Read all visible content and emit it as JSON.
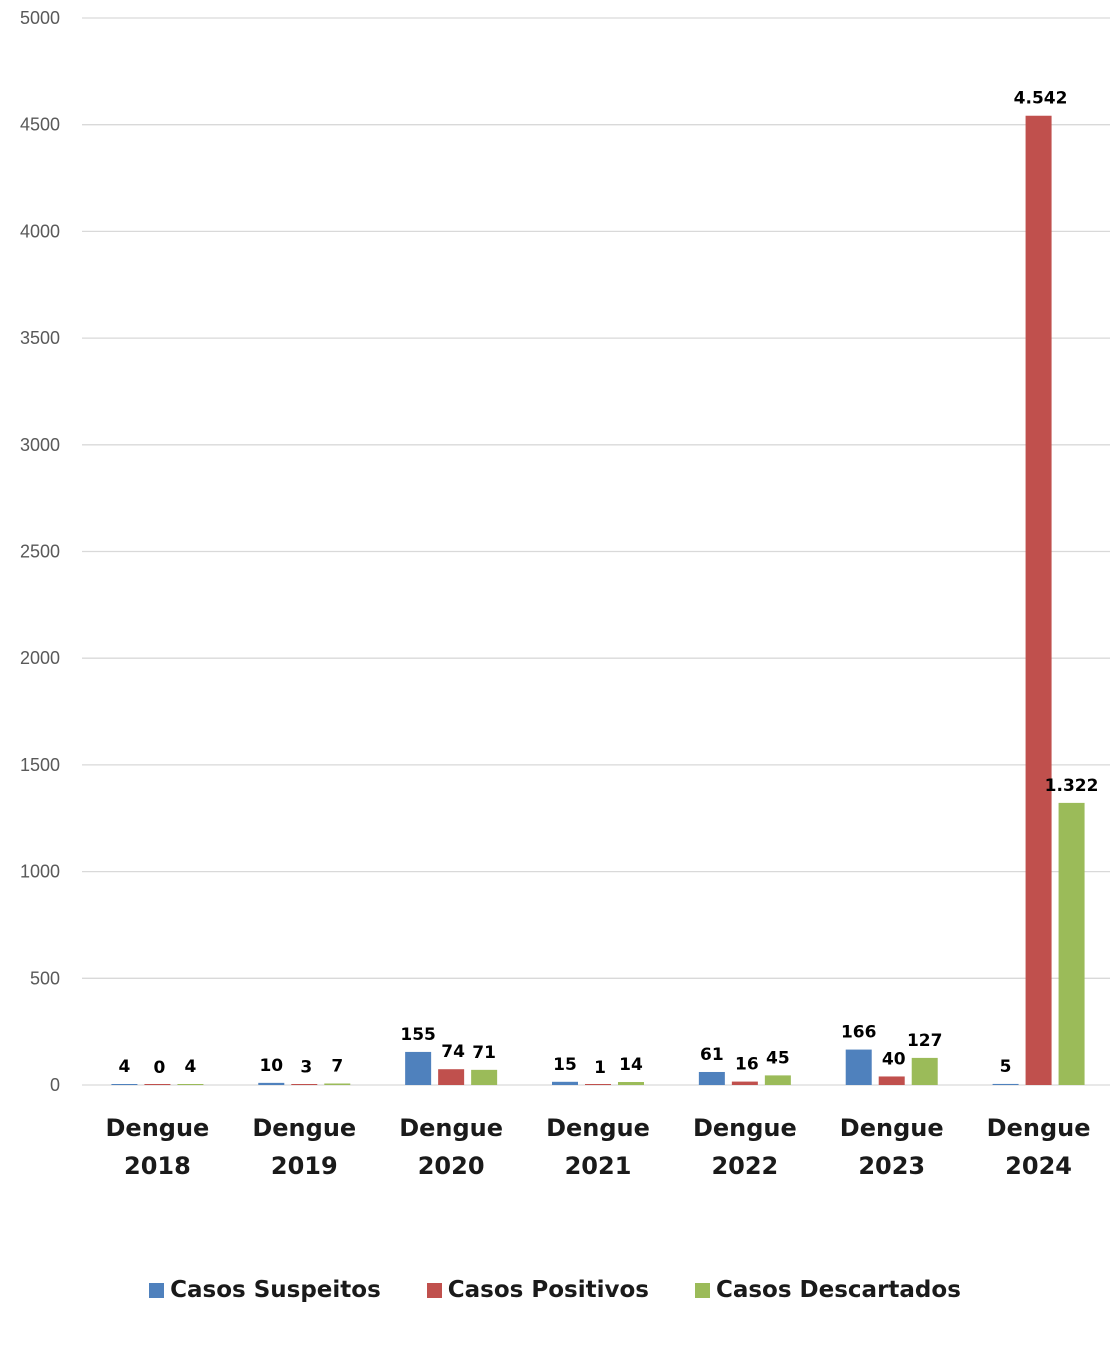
{
  "chart_data": {
    "type": "bar",
    "categories": [
      [
        "Dengue",
        "2018"
      ],
      [
        "Dengue",
        "2019"
      ],
      [
        "Dengue",
        "2020"
      ],
      [
        "Dengue",
        "2021"
      ],
      [
        "Dengue",
        "2022"
      ],
      [
        "Dengue",
        "2023"
      ],
      [
        "Dengue",
        "2024"
      ]
    ],
    "series": [
      {
        "name": "Casos Suspeitos",
        "color": "#4f81bd",
        "values": [
          4,
          10,
          155,
          15,
          61,
          166,
          5
        ],
        "labels": [
          "4",
          "10",
          "155",
          "15",
          "61",
          "166",
          "5"
        ]
      },
      {
        "name": "Casos Positivos",
        "color": "#c0504d",
        "values": [
          0,
          3,
          74,
          1,
          16,
          40,
          4542
        ],
        "labels": [
          "0",
          "3",
          "74",
          "1",
          "16",
          "40",
          "4.542"
        ]
      },
      {
        "name": "Casos Descartados",
        "color": "#9bbb59",
        "values": [
          4,
          7,
          71,
          14,
          45,
          127,
          1322
        ],
        "labels": [
          "4",
          "7",
          "71",
          "14",
          "45",
          "127",
          "1.322"
        ]
      }
    ],
    "ylim": [
      0,
      5000
    ],
    "yticks": [
      0,
      500,
      1000,
      1500,
      2000,
      2500,
      3000,
      3500,
      4000,
      4500,
      5000
    ],
    "grid": true,
    "legend_position": "bottom"
  }
}
